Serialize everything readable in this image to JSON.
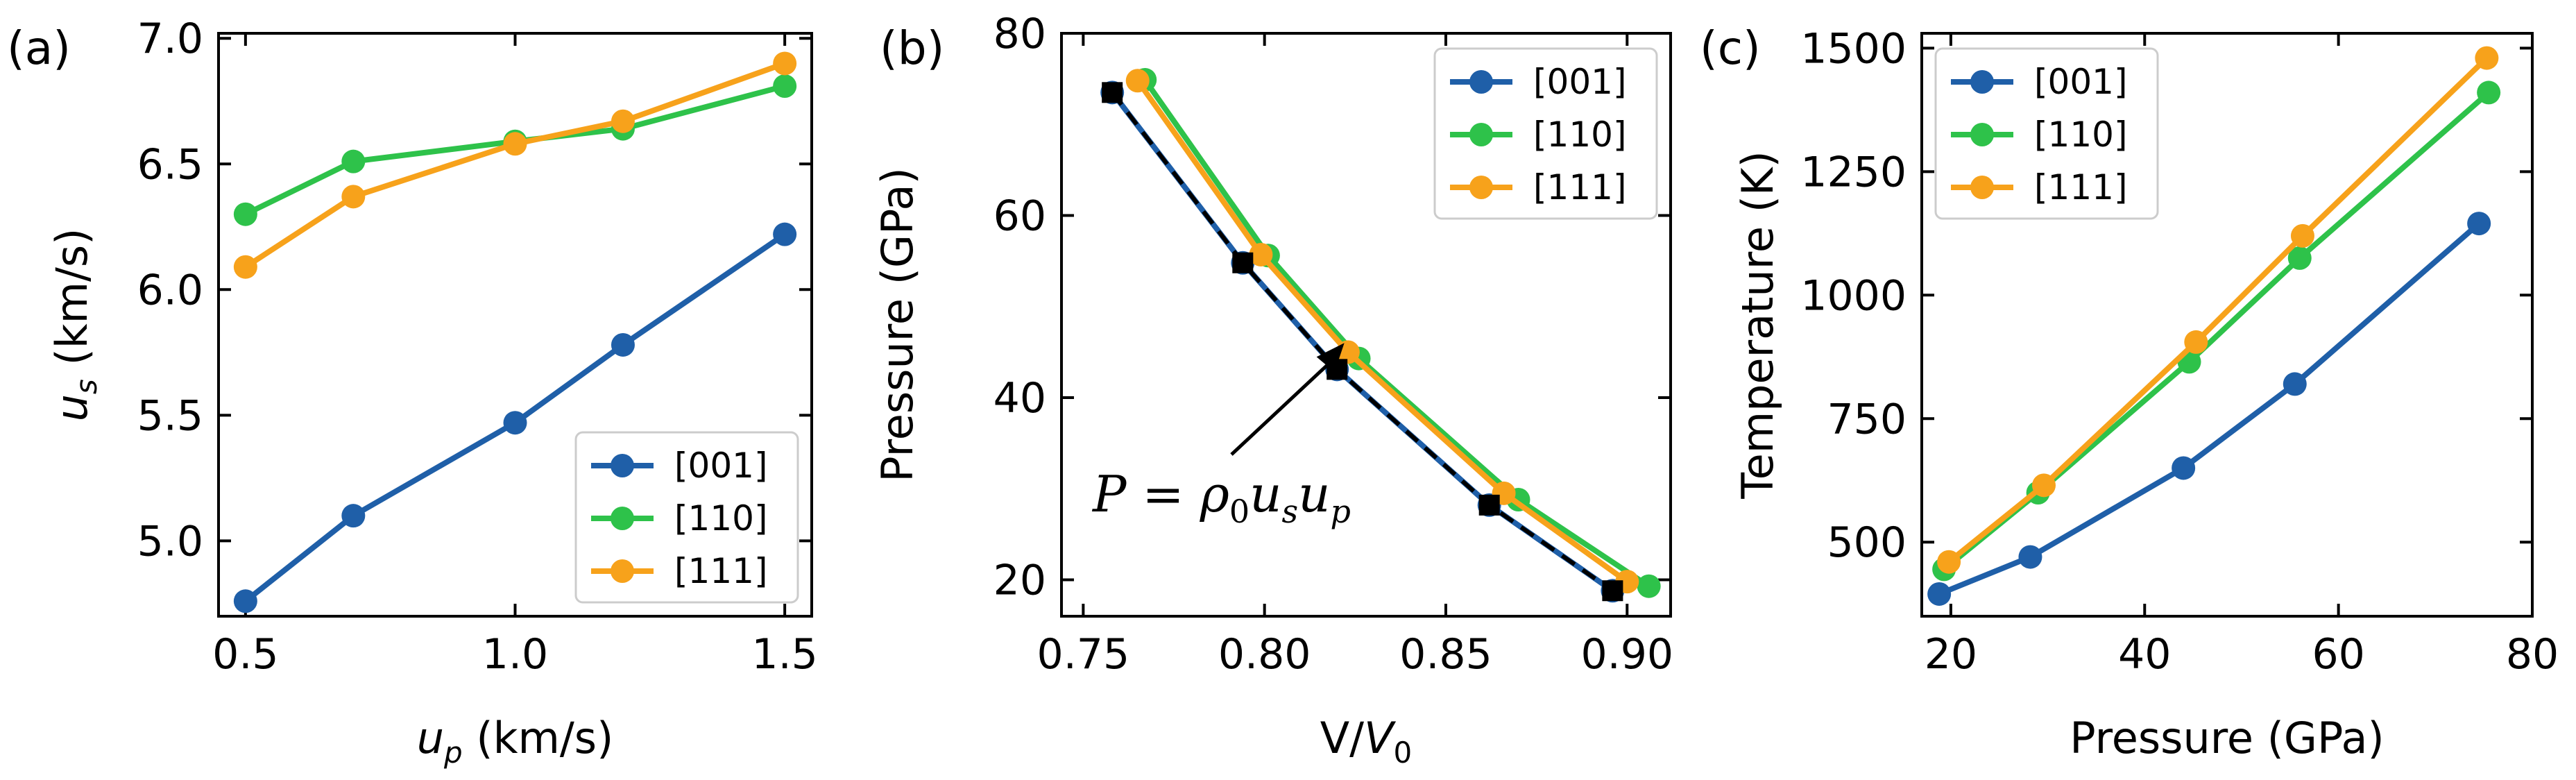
{
  "colors": {
    "s001": "#1f5fa8",
    "s110": "#2ec24a",
    "s111": "#f7a21b",
    "ref": "#000000"
  },
  "chart_data": [
    {
      "type": "line",
      "panel": "(a)",
      "xlabel": "u",
      "xlabel_sub": "p",
      "xlabel_unit": " (km/s)",
      "ylabel": "u",
      "ylabel_sub": "s",
      "ylabel_unit": " (km/s)",
      "xlim": [
        0.45,
        1.55
      ],
      "ylim": [
        4.7,
        7.02
      ],
      "xticks": [
        0.5,
        1.0,
        1.5
      ],
      "xtick_labels": [
        "0.5",
        "1.0",
        "1.5"
      ],
      "yticks": [
        5.0,
        5.5,
        6.0,
        6.5,
        7.0
      ],
      "ytick_labels": [
        "5.0",
        "5.5",
        "6.0",
        "6.5",
        "7.0"
      ],
      "legend_position": "bottom-right",
      "series": [
        {
          "name": "[001]",
          "color_key": "s001",
          "x": [
            0.5,
            0.7,
            1.0,
            1.2,
            1.5
          ],
          "y": [
            4.76,
            5.1,
            5.47,
            5.78,
            6.22
          ]
        },
        {
          "name": "[110]",
          "color_key": "s110",
          "x": [
            0.5,
            0.7,
            1.0,
            1.2,
            1.5
          ],
          "y": [
            6.3,
            6.51,
            6.59,
            6.64,
            6.81
          ]
        },
        {
          "name": "[111]",
          "color_key": "s111",
          "x": [
            0.5,
            0.7,
            1.0,
            1.2,
            1.5
          ],
          "y": [
            6.09,
            6.37,
            6.58,
            6.67,
            6.9
          ]
        }
      ]
    },
    {
      "type": "line",
      "panel": "(b)",
      "xlabel": "V/",
      "xlabel_v": "V",
      "xlabel_sub": "0",
      "ylabel": "Pressure (GPa)",
      "xlim": [
        0.744,
        0.912
      ],
      "ylim": [
        16,
        80
      ],
      "xticks": [
        0.75,
        0.8,
        0.85,
        0.9
      ],
      "xtick_labels": [
        "0.75",
        "0.80",
        "0.85",
        "0.90"
      ],
      "yticks": [
        20,
        40,
        60,
        80
      ],
      "ytick_labels": [
        "20",
        "40",
        "60",
        "80"
      ],
      "legend_position": "top-right",
      "annotation": {
        "P": "P",
        "eq": " = ",
        "rho": "ρ",
        "rho_sub": "0",
        "u1": "u",
        "u1_sub": "s",
        "u2": "u",
        "u2_sub": "p",
        "points_to": {
          "x": 0.822,
          "y": 46
        }
      },
      "reference": {
        "name": "P = ρ0 us up",
        "x": [
          0.758,
          0.794,
          0.82,
          0.862,
          0.896
        ],
        "y": [
          73.5,
          54.8,
          43.1,
          28.2,
          18.8
        ]
      },
      "series": [
        {
          "name": "[001]",
          "color_key": "s001",
          "x": [
            0.758,
            0.794,
            0.82,
            0.862,
            0.896
          ],
          "y": [
            73.5,
            54.8,
            43.1,
            28.2,
            18.8
          ]
        },
        {
          "name": "[110]",
          "color_key": "s110",
          "x": [
            0.767,
            0.801,
            0.826,
            0.87,
            0.906
          ],
          "y": [
            74.9,
            55.6,
            44.3,
            28.8,
            19.3
          ]
        },
        {
          "name": "[111]",
          "color_key": "s111",
          "x": [
            0.765,
            0.799,
            0.823,
            0.866,
            0.9
          ],
          "y": [
            74.8,
            55.7,
            45.0,
            29.5,
            19.8
          ]
        }
      ]
    },
    {
      "type": "line",
      "panel": "(c)",
      "xlabel": "Pressure (GPa)",
      "ylabel": "Temperature (K)",
      "xlim": [
        17,
        80
      ],
      "ylim": [
        350,
        1530
      ],
      "xticks": [
        20,
        40,
        60,
        80
      ],
      "xtick_labels": [
        "20",
        "40",
        "60",
        "80"
      ],
      "yticks": [
        500,
        750,
        1000,
        1250,
        1500
      ],
      "ytick_labels": [
        "500",
        "750",
        "1000",
        "1250",
        "1500"
      ],
      "legend_position": "top-left",
      "series": [
        {
          "name": "[001]",
          "color_key": "s001",
          "x": [
            18.8,
            28.2,
            44.0,
            55.5,
            74.5
          ],
          "y": [
            395,
            470,
            650,
            820,
            1145
          ]
        },
        {
          "name": "[110]",
          "color_key": "s110",
          "x": [
            19.3,
            29.0,
            44.6,
            56.0,
            75.5
          ],
          "y": [
            445,
            600,
            865,
            1075,
            1410
          ]
        },
        {
          "name": "[111]",
          "color_key": "s111",
          "x": [
            19.8,
            29.6,
            45.3,
            56.3,
            75.3
          ],
          "y": [
            460,
            615,
            905,
            1120,
            1480
          ]
        }
      ]
    }
  ]
}
